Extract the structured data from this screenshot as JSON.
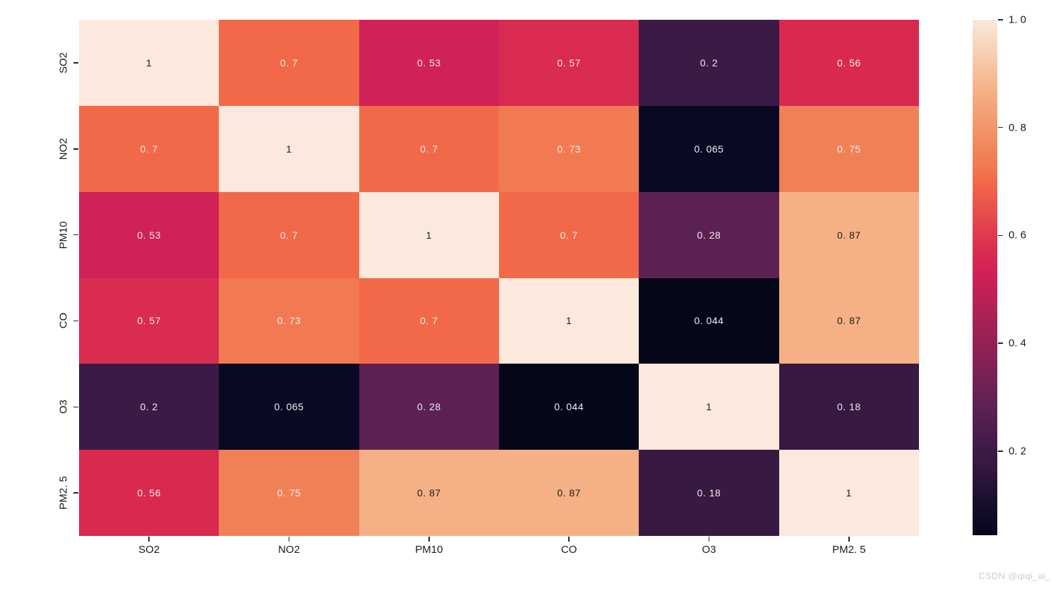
{
  "figure": {
    "background": "#ffffff"
  },
  "watermark": {
    "text": "CSDN @qiqi_ai_",
    "color": "#c9cdd8"
  },
  "chart_data": {
    "type": "heatmap",
    "title": "",
    "xlabel": "",
    "ylabel": "",
    "categories": [
      "SO2",
      "NO2",
      "PM10",
      "CO",
      "O3",
      "PM2.5"
    ],
    "x_tick_labels": [
      "SO2",
      "NO2",
      "PM10",
      "CO",
      "O3",
      "PM2. 5"
    ],
    "y_tick_labels": [
      "SO2",
      "NO2",
      "PM10",
      "CO",
      "O3",
      "PM2. 5"
    ],
    "matrix": [
      [
        1,
        0.7,
        0.53,
        0.57,
        0.2,
        0.56
      ],
      [
        0.7,
        1,
        0.7,
        0.73,
        0.065,
        0.75
      ],
      [
        0.53,
        0.7,
        1,
        0.7,
        0.28,
        0.87
      ],
      [
        0.57,
        0.73,
        0.7,
        1,
        0.044,
        0.87
      ],
      [
        0.2,
        0.065,
        0.28,
        0.044,
        1,
        0.18
      ],
      [
        0.56,
        0.75,
        0.87,
        0.87,
        0.18,
        1
      ]
    ],
    "cell_labels": [
      [
        "1",
        "0. 7",
        "0. 53",
        "0. 57",
        "0. 2",
        "0. 56"
      ],
      [
        "0. 7",
        "1",
        "0. 7",
        "0. 73",
        "0. 065",
        "0. 75"
      ],
      [
        "0. 53",
        "0. 7",
        "1",
        "0. 7",
        "0. 28",
        "0. 87"
      ],
      [
        "0. 57",
        "0. 73",
        "0. 7",
        "1",
        "0. 044",
        "0. 87"
      ],
      [
        "0. 2",
        "0. 065",
        "0. 28",
        "0. 044",
        "1",
        "0. 18"
      ],
      [
        "0. 56",
        "0. 75",
        "0. 87",
        "0. 87",
        "0. 18",
        "1"
      ]
    ],
    "vmin": 0.044,
    "vmax": 1.0,
    "colormap": "rocket",
    "grid": false,
    "colorbar": {
      "tick_values": [
        1.0,
        0.8,
        0.6,
        0.4,
        0.2
      ],
      "tick_labels": [
        "1. 0",
        "0. 8",
        "0. 6",
        "0. 4",
        "0. 2"
      ]
    },
    "value_colors": {
      "1": "#fae9dc",
      "0.87": "#f5b185",
      "0.75": "#f08157",
      "0.73": "#f27a52",
      "0.7": "#f26949",
      "0.57": "#da2b50",
      "0.56": "#d9294f",
      "0.53": "#d02158",
      "0.28": "#5c2153",
      "0.2": "#3c1a46",
      "0.18": "#381941",
      "0.065": "#0a0923",
      "0.044": "#060619"
    },
    "gradient_stops": [
      [
        0,
        "#060619"
      ],
      [
        2.2,
        "#0a0923"
      ],
      [
        14.2,
        "#381941"
      ],
      [
        16.3,
        "#3c1a46"
      ],
      [
        24.7,
        "#5c2153"
      ],
      [
        50.8,
        "#d02158"
      ],
      [
        53.9,
        "#d9294f"
      ],
      [
        55.0,
        "#da2b50"
      ],
      [
        68.6,
        "#f26949"
      ],
      [
        71.8,
        "#f27a52"
      ],
      [
        73.8,
        "#f08157"
      ],
      [
        86.4,
        "#f5b185"
      ],
      [
        100,
        "#fae9dc"
      ]
    ],
    "annotation_text_colors": {
      "dark": "#1a1a1a",
      "light": "#f0eef0"
    }
  }
}
